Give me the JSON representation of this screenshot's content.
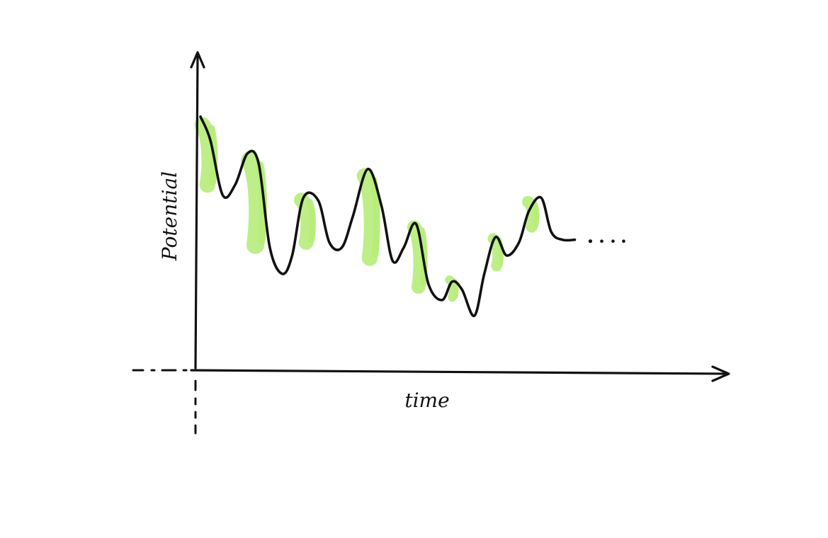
{
  "chart_data": {
    "type": "line",
    "xlabel": "time",
    "ylabel": "Potential",
    "colors": {
      "line": "#111111",
      "shade": "#b7ec7a"
    },
    "series": [
      {
        "values": [
          [
            0.0,
            9.6
          ],
          [
            0.4,
            8.7
          ],
          [
            0.9,
            6.6
          ],
          [
            1.4,
            7.0
          ],
          [
            1.9,
            8.2
          ],
          [
            2.35,
            7.8
          ],
          [
            2.8,
            4.6
          ],
          [
            3.3,
            3.6
          ],
          [
            3.7,
            4.3
          ],
          [
            4.15,
            6.5
          ],
          [
            4.75,
            6.4
          ],
          [
            5.2,
            4.8
          ],
          [
            5.7,
            4.6
          ],
          [
            6.15,
            5.8
          ],
          [
            6.75,
            7.6
          ],
          [
            7.3,
            6.2
          ],
          [
            7.75,
            4.1
          ],
          [
            8.2,
            4.6
          ],
          [
            8.7,
            5.5
          ],
          [
            9.2,
            3.2
          ],
          [
            9.75,
            2.6
          ],
          [
            10.15,
            3.3
          ],
          [
            10.55,
            3.0
          ],
          [
            11.05,
            2.0
          ],
          [
            11.45,
            3.6
          ],
          [
            11.9,
            5.0
          ],
          [
            12.35,
            4.3
          ],
          [
            12.85,
            4.8
          ],
          [
            13.25,
            6.0
          ],
          [
            13.75,
            6.5
          ],
          [
            14.15,
            5.2
          ],
          [
            14.6,
            4.9
          ],
          [
            15.1,
            4.9
          ]
        ]
      }
    ],
    "shade_regions": [
      {
        "x_start": 0.0,
        "x_end": 0.8,
        "top": 9.4,
        "bottom": 7.0
      },
      {
        "x_start": 1.9,
        "x_end": 2.8,
        "top": 8.1,
        "bottom": 4.7
      },
      {
        "x_start": 4.0,
        "x_end": 4.75,
        "top": 6.5,
        "bottom": 4.8
      },
      {
        "x_start": 6.55,
        "x_end": 7.35,
        "top": 7.5,
        "bottom": 4.2
      },
      {
        "x_start": 8.55,
        "x_end": 9.25,
        "top": 5.5,
        "bottom": 3.1
      },
      {
        "x_start": 10.0,
        "x_end": 10.45,
        "top": 3.4,
        "bottom": 2.7
      },
      {
        "x_start": 11.75,
        "x_end": 12.3,
        "top": 5.0,
        "bottom": 3.9
      },
      {
        "x_start": 13.15,
        "x_end": 13.75,
        "top": 6.4,
        "bottom": 5.4
      }
    ]
  }
}
